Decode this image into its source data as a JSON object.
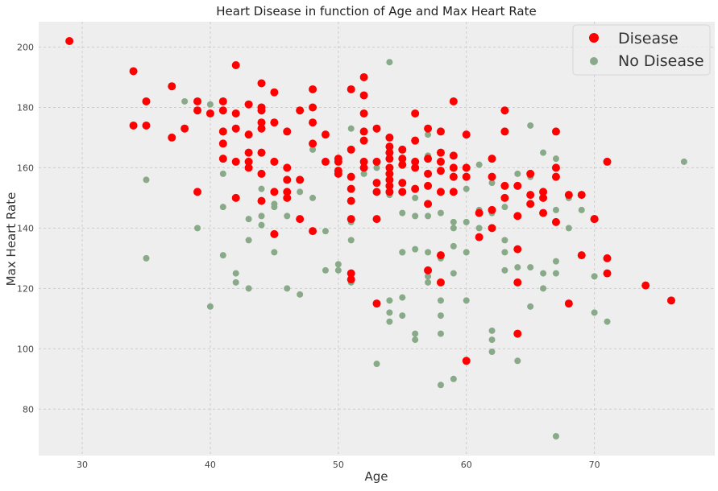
{
  "chart_data": {
    "type": "scatter",
    "title": "Heart Disease in function of Age and Max Heart Rate",
    "xlabel": "Age",
    "ylabel": "Max Heart Rate",
    "xlim": [
      26.6,
      79.4
    ],
    "ylim": [
      64.6,
      208.4
    ],
    "xticks": [
      30,
      40,
      50,
      60,
      70
    ],
    "yticks": [
      80,
      100,
      120,
      140,
      160,
      180,
      200
    ],
    "grid": true,
    "legend_position": "top-right",
    "colors": {
      "background": "#eeeeee",
      "grid": "#cccccc"
    },
    "series": [
      {
        "name": "Disease",
        "color": "#ff0000",
        "x": [
          29,
          34,
          34,
          35,
          35,
          37,
          37,
          38,
          39,
          39,
          39,
          40,
          41,
          41,
          41,
          41,
          41,
          42,
          42,
          42,
          42,
          42,
          43,
          43,
          43,
          43,
          43,
          44,
          44,
          44,
          44,
          44,
          44,
          44,
          44,
          45,
          45,
          45,
          45,
          45,
          46,
          46,
          46,
          46,
          46,
          47,
          47,
          47,
          48,
          48,
          48,
          48,
          48,
          49,
          49,
          50,
          50,
          50,
          50,
          51,
          51,
          51,
          51,
          51,
          51,
          51,
          51,
          52,
          52,
          52,
          52,
          52,
          52,
          52,
          53,
          53,
          53,
          53,
          53,
          53,
          54,
          54,
          54,
          54,
          54,
          54,
          54,
          54,
          54,
          55,
          55,
          55,
          55,
          55,
          56,
          56,
          56,
          56,
          56,
          57,
          57,
          57,
          57,
          57,
          57,
          58,
          58,
          58,
          58,
          58,
          58,
          58,
          59,
          59,
          59,
          59,
          59,
          60,
          60,
          60,
          60,
          61,
          61,
          62,
          62,
          62,
          62,
          63,
          63,
          63,
          63,
          64,
          64,
          64,
          64,
          64,
          65,
          65,
          65,
          66,
          66,
          66,
          67,
          67,
          67,
          67,
          68,
          68,
          69,
          69,
          70,
          70,
          71,
          71,
          71,
          74,
          76
        ],
        "y": [
          202,
          192,
          174,
          182,
          174,
          187,
          170,
          173,
          182,
          179,
          152,
          178,
          182,
          179,
          172,
          168,
          163,
          194,
          178,
          173,
          162,
          150,
          181,
          171,
          165,
          162,
          160,
          188,
          180,
          179,
          175,
          173,
          165,
          158,
          149,
          185,
          175,
          162,
          152,
          138,
          172,
          160,
          156,
          152,
          150,
          179,
          156,
          143,
          186,
          180,
          175,
          168,
          139,
          171,
          162,
          163,
          162,
          159,
          158,
          186,
          166,
          157,
          153,
          149,
          143,
          125,
          123,
          190,
          184,
          178,
          172,
          169,
          162,
          160,
          173,
          162,
          155,
          152,
          143,
          115,
          170,
          167,
          165,
          163,
          160,
          158,
          156,
          154,
          152,
          166,
          163,
          161,
          155,
          152,
          178,
          169,
          162,
          160,
          153,
          173,
          163,
          158,
          154,
          148,
          126,
          172,
          165,
          162,
          159,
          152,
          131,
          122,
          182,
          164,
          160,
          157,
          152,
          171,
          160,
          157,
          96,
          145,
          137,
          163,
          157,
          146,
          140,
          179,
          172,
          154,
          150,
          154,
          144,
          133,
          122,
          105,
          158,
          151,
          148,
          152,
          150,
          145,
          172,
          160,
          157,
          142,
          151,
          115,
          151,
          131,
          143,
          143,
          162,
          130,
          125,
          121,
          116
        ]
      },
      {
        "name": "No Disease",
        "color": "#88aa88",
        "x": [
          35,
          35,
          38,
          39,
          40,
          40,
          41,
          41,
          41,
          42,
          42,
          43,
          43,
          43,
          44,
          44,
          44,
          45,
          45,
          45,
          46,
          46,
          47,
          47,
          47,
          48,
          48,
          48,
          49,
          49,
          50,
          50,
          50,
          51,
          51,
          51,
          51,
          52,
          52,
          52,
          53,
          53,
          53,
          54,
          54,
          54,
          54,
          54,
          54,
          55,
          55,
          55,
          55,
          55,
          56,
          56,
          56,
          56,
          56,
          57,
          57,
          57,
          57,
          57,
          57,
          58,
          58,
          58,
          58,
          58,
          58,
          58,
          59,
          59,
          59,
          59,
          59,
          60,
          60,
          60,
          60,
          61,
          61,
          61,
          62,
          62,
          62,
          62,
          62,
          63,
          63,
          63,
          63,
          64,
          64,
          64,
          64,
          65,
          65,
          65,
          65,
          66,
          66,
          66,
          67,
          67,
          67,
          67,
          67,
          67,
          68,
          68,
          69,
          70,
          70,
          71,
          77
        ],
        "y": [
          156,
          130,
          182,
          140,
          181,
          114,
          158,
          147,
          131,
          125,
          122,
          143,
          136,
          120,
          153,
          144,
          141,
          148,
          147,
          132,
          144,
          120,
          152,
          118,
          143,
          168,
          166,
          150,
          139,
          126,
          128,
          126,
          158,
          173,
          142,
          136,
          122,
          169,
          162,
          158,
          95,
          143,
          160,
          195,
          163,
          151,
          116,
          112,
          109,
          145,
          132,
          117,
          111,
          132,
          133,
          150,
          144,
          105,
          103,
          171,
          164,
          144,
          132,
          124,
          122,
          145,
          130,
          116,
          111,
          105,
          88,
          131,
          142,
          140,
          134,
          125,
          90,
          142,
          153,
          132,
          116,
          161,
          146,
          140,
          155,
          145,
          106,
          103,
          99,
          147,
          136,
          132,
          126,
          158,
          127,
          105,
          96,
          174,
          157,
          127,
          114,
          165,
          125,
          120,
          163,
          160,
          146,
          129,
          125,
          71,
          150,
          140,
          146,
          124,
          112,
          109,
          162
        ]
      }
    ]
  }
}
